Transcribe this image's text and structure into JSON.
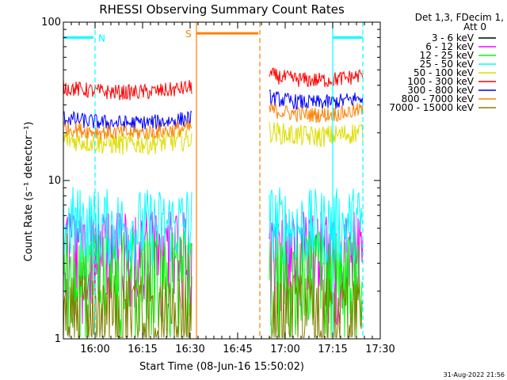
{
  "chart_data": {
    "type": "line",
    "title": "RHESSI Observing Summary Count Rates",
    "xlabel": "Start Time (08-Jun-16 15:50:02)",
    "ylabel": "Count Rate (s⁻¹ detector⁻¹)",
    "y_scale": "log",
    "ylim": [
      1,
      100
    ],
    "x_unit": "minutes after 15:50:02",
    "xlim": [
      0,
      100
    ],
    "x_ticks": [
      {
        "label": "16:00",
        "value": 10
      },
      {
        "label": "16:15",
        "value": 25
      },
      {
        "label": "16:30",
        "value": 40
      },
      {
        "label": "16:45",
        "value": 55
      },
      {
        "label": "17:00",
        "value": 70
      },
      {
        "label": "17:15",
        "value": 85
      },
      {
        "label": "17:30",
        "value": 100
      }
    ],
    "y_ticks": [
      {
        "label": "1",
        "value": 1
      },
      {
        "label": "10",
        "value": 10
      },
      {
        "label": "100",
        "value": 100
      }
    ],
    "legend": {
      "header": [
        "Det 1,3, FDecim 1,",
        "Att 0"
      ],
      "placement": "right"
    },
    "segments": [
      [
        0,
        40.5
      ],
      [
        65,
        94.5
      ]
    ],
    "series": [
      {
        "name": "3 - 6 keV",
        "color": "#000000",
        "base": [
          null,
          null
        ],
        "noise": 0
      },
      {
        "name": "6 - 12 keV",
        "color": "#ff00ff",
        "base": [
          4.0,
          4.0
        ],
        "noise": 0.35
      },
      {
        "name": "12 - 25 keV",
        "color": "#00ff00",
        "base": [
          3.0,
          3.0
        ],
        "noise": 0.35
      },
      {
        "name": "25 - 50 keV",
        "color": "#00ffff",
        "base": [
          5.0,
          5.0
        ],
        "noise": 0.25
      },
      {
        "name": "50 - 100 keV",
        "color": "#dddd00",
        "base": [
          17,
          19
        ],
        "noise": 0.07
      },
      {
        "name": "100 - 300 keV",
        "color": "#ff0000",
        "base": [
          36,
          43
        ],
        "noise": 0.05
      },
      {
        "name": "300 - 800 keV",
        "color": "#0000ff",
        "base": [
          23,
          31
        ],
        "noise": 0.05
      },
      {
        "name": "800 - 7000 keV",
        "color": "#ff8000",
        "base": [
          20,
          26
        ],
        "noise": 0.05
      },
      {
        "name": "7000 - 15000 keV",
        "color": "#808000",
        "base": [
          1.6,
          1.6
        ],
        "noise": 0.4
      }
    ],
    "annotations": [
      {
        "label": "N",
        "color": "#00ffff",
        "x_start": 0,
        "x_end": 10,
        "y": 80
      },
      {
        "label": "S",
        "color": "#ff8000",
        "x_start": 42,
        "x_end": 62,
        "y": 85
      }
    ],
    "markers": [
      {
        "x": 10,
        "color": "#00ffff",
        "style": "dashed"
      },
      {
        "x": 42,
        "color": "#ff8000",
        "style": "solid"
      },
      {
        "x": 62,
        "color": "#ff8000",
        "style": "dashed"
      },
      {
        "x": 85,
        "color": "#00ffff",
        "style": "solid"
      },
      {
        "x": 94.5,
        "color": "#00ffff",
        "style": "dashed"
      }
    ],
    "footer": "31-Aug-2022 21:56"
  }
}
